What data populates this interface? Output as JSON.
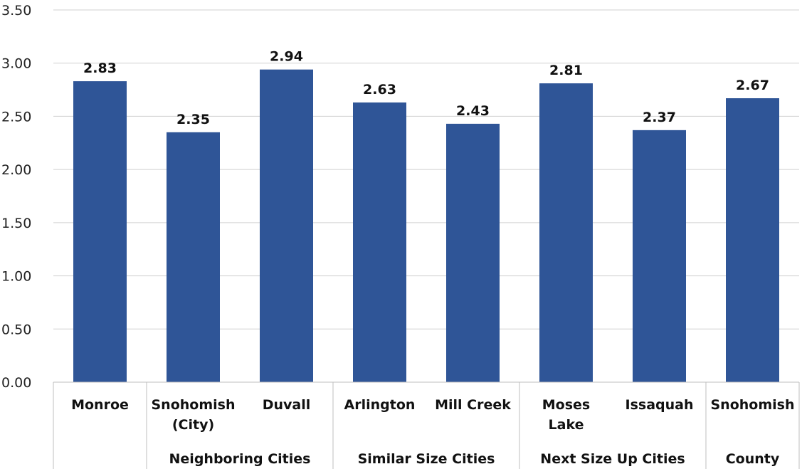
{
  "chart_data": {
    "type": "bar",
    "categories": [
      [
        "Monroe"
      ],
      [
        "Snohomish",
        "(City)"
      ],
      [
        "Duvall"
      ],
      [
        "Arlington"
      ],
      [
        "Mill Creek"
      ],
      [
        "Moses",
        "Lake"
      ],
      [
        "Issaquah"
      ],
      [
        "Snohomish"
      ]
    ],
    "values": [
      2.83,
      2.35,
      2.94,
      2.63,
      2.43,
      2.81,
      2.37,
      2.67
    ],
    "value_labels": [
      "2.83",
      "2.35",
      "2.94",
      "2.63",
      "2.43",
      "2.81",
      "2.37",
      "2.67"
    ],
    "groups": [
      {
        "label": "",
        "start": 0,
        "end": 0
      },
      {
        "label": "Neighboring Cities",
        "start": 1,
        "end": 2
      },
      {
        "label": "Similar Size Cities",
        "start": 3,
        "end": 4
      },
      {
        "label": "Next Size Up Cities",
        "start": 5,
        "end": 6
      },
      {
        "label": "County",
        "start": 7,
        "end": 7
      }
    ],
    "yticks": [
      "0.00",
      "0.50",
      "1.00",
      "1.50",
      "2.00",
      "2.50",
      "3.00",
      "3.50"
    ],
    "ylim": [
      0,
      3.5
    ],
    "grid": true,
    "legend": "none",
    "bar_color": "#2f5597"
  }
}
